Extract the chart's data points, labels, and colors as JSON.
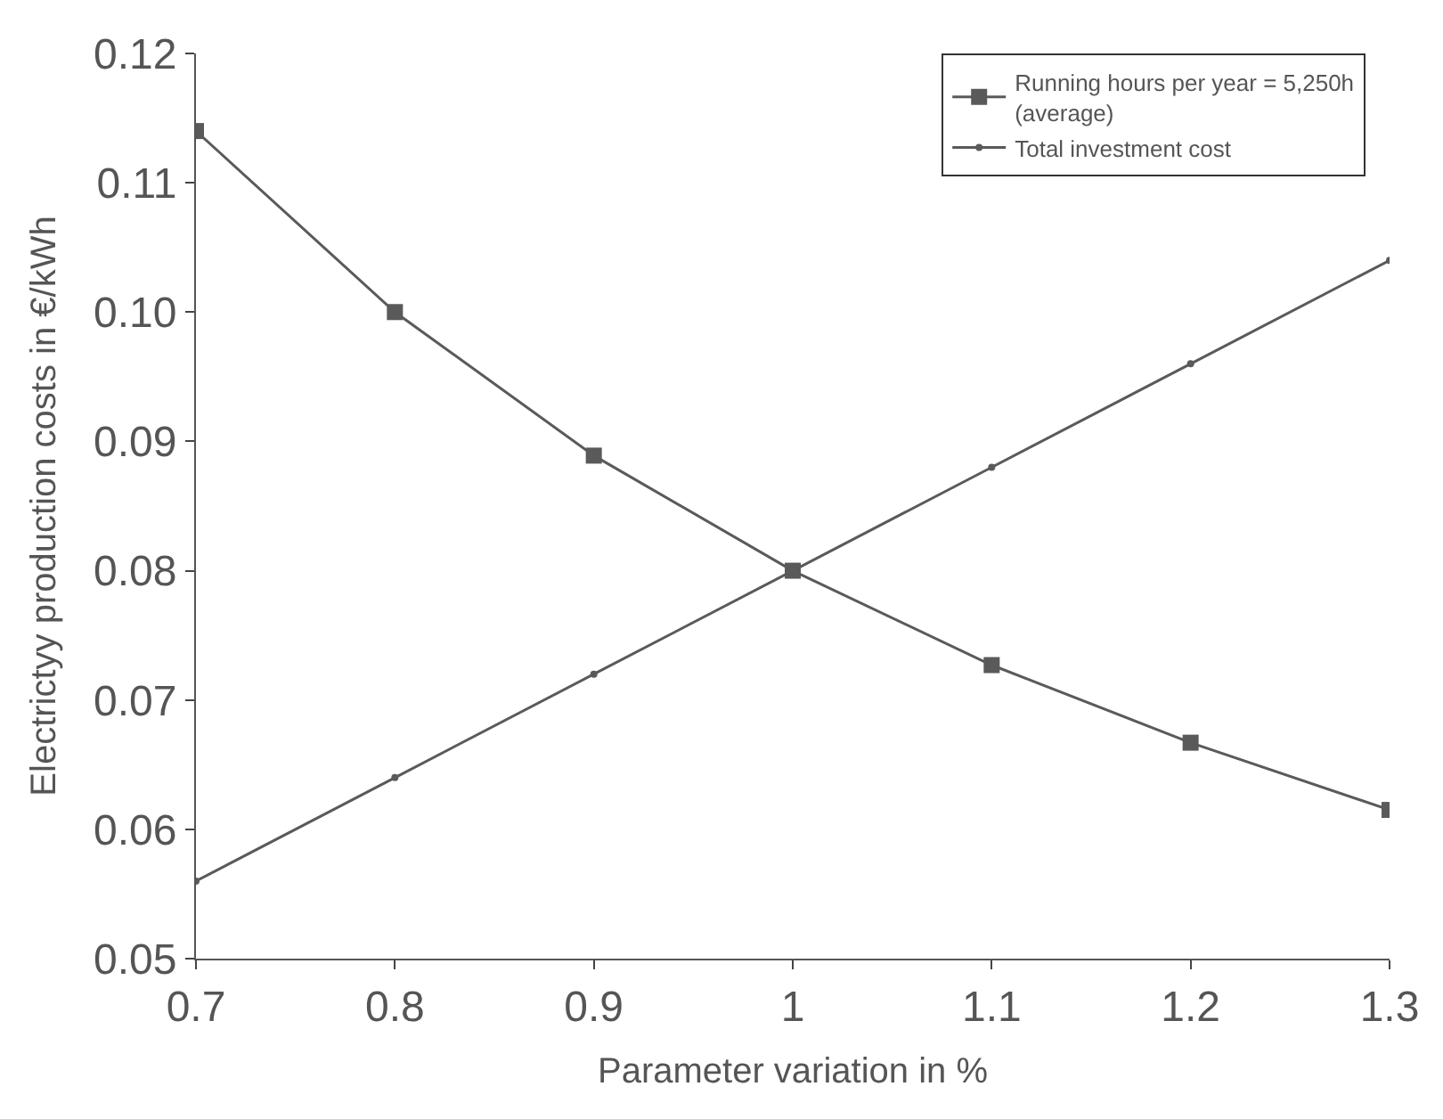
{
  "chart_data": {
    "type": "line",
    "xlabel": "Parameter variation in %",
    "ylabel": "Electrictyy production costs in €/kWh",
    "x": [
      0.7,
      0.8,
      0.9,
      1,
      1.1,
      1.2,
      1.3
    ],
    "series": [
      {
        "name": "Running hours per year = 5,250h (average)",
        "color": "#5a5a5a",
        "marker": "square",
        "values": [
          0.114,
          0.1,
          0.0889,
          0.08,
          0.0727,
          0.0667,
          0.0615
        ]
      },
      {
        "name": "Total investment cost",
        "color": "#5a5a5a",
        "marker": "circle",
        "values": [
          0.056,
          0.064,
          0.072,
          0.08,
          0.088,
          0.096,
          0.104
        ]
      }
    ],
    "xlim": [
      0.7,
      1.3
    ],
    "xticks": [
      0.7,
      0.8,
      0.9,
      1,
      1.1,
      1.2,
      1.3
    ],
    "ylim": [
      0.05,
      0.12
    ],
    "yticks": [
      0.05,
      0.06,
      0.07,
      0.08,
      0.09,
      {
        "value": 0.1,
        "label": "0.10"
      },
      0.11,
      0.12
    ],
    "grid": false,
    "legend": "top right",
    "line_style": "solid"
  }
}
